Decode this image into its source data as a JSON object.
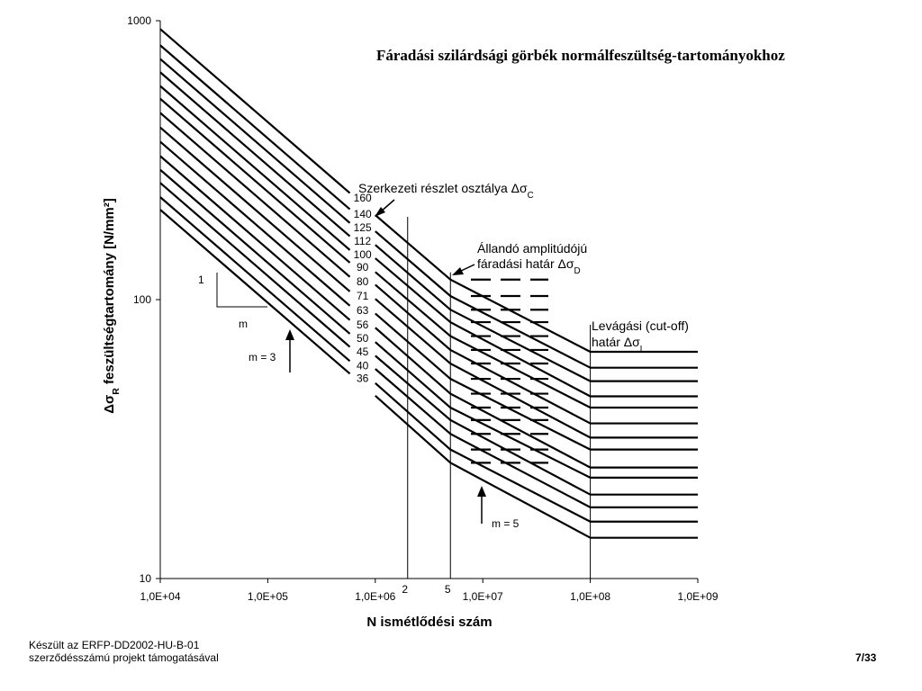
{
  "chart_data": {
    "type": "line",
    "title": "Fáradási szilárdsági görbék normálfeszültség-tartományokhoz",
    "xlabel": "N ismétlődési szám",
    "ylabel": "Δσ_R feszültségtartomány [N/mm²]",
    "xscale": "log",
    "yscale": "log",
    "xlim": [
      10000,
      1000000000
    ],
    "ylim": [
      10,
      1000
    ],
    "xticks": [
      "1,0E+04",
      "1,0E+05",
      "1,0E+06",
      "1,0E+07",
      "1,0E+08",
      "1,0E+09"
    ],
    "yticks": [
      "10",
      "100",
      "1000"
    ],
    "x_markers": [
      {
        "x": 2000000,
        "label": "2"
      },
      {
        "x": 5000000,
        "label": "5"
      },
      {
        "x": 100000000,
        "label": ""
      }
    ],
    "detail_categories": [
      160,
      140,
      125,
      112,
      100,
      90,
      80,
      71,
      63,
      56,
      50,
      45,
      40,
      36
    ],
    "segment_1": {
      "slope_m": 3,
      "x_range": [
        10000,
        5000000
      ]
    },
    "segment_2": {
      "slope_m": 5,
      "x_range": [
        5000000,
        100000000
      ]
    },
    "cutoff": {
      "x_range": [
        100000000,
        1000000000
      ]
    },
    "series": [
      {
        "name": "160",
        "points": [
          [
            10000,
            933
          ],
          [
            5000000,
            118
          ],
          [
            100000000,
            65
          ],
          [
            1000000000,
            65
          ]
        ]
      },
      {
        "name": "140",
        "points": [
          [
            10000,
            816
          ],
          [
            5000000,
            103
          ],
          [
            100000000,
            57
          ],
          [
            1000000000,
            57
          ]
        ]
      },
      {
        "name": "125",
        "points": [
          [
            10000,
            729
          ],
          [
            5000000,
            92
          ],
          [
            100000000,
            51
          ],
          [
            1000000000,
            51
          ]
        ]
      },
      {
        "name": "112",
        "points": [
          [
            10000,
            653
          ],
          [
            5000000,
            83
          ],
          [
            100000000,
            45
          ],
          [
            1000000000,
            45
          ]
        ]
      },
      {
        "name": "100",
        "points": [
          [
            10000,
            583
          ],
          [
            5000000,
            74
          ],
          [
            100000000,
            41
          ],
          [
            1000000000,
            41
          ]
        ]
      },
      {
        "name": "90",
        "points": [
          [
            10000,
            525
          ],
          [
            5000000,
            66
          ],
          [
            100000000,
            36
          ],
          [
            1000000000,
            36
          ]
        ]
      },
      {
        "name": "80",
        "points": [
          [
            10000,
            467
          ],
          [
            5000000,
            59
          ],
          [
            100000000,
            32
          ],
          [
            1000000000,
            32
          ]
        ]
      },
      {
        "name": "71",
        "points": [
          [
            10000,
            414
          ],
          [
            5000000,
            52
          ],
          [
            100000000,
            29
          ],
          [
            1000000000,
            29
          ]
        ]
      },
      {
        "name": "63",
        "points": [
          [
            10000,
            368
          ],
          [
            5000000,
            46
          ],
          [
            100000000,
            25
          ],
          [
            1000000000,
            25
          ]
        ]
      },
      {
        "name": "56",
        "points": [
          [
            10000,
            327
          ],
          [
            5000000,
            41
          ],
          [
            100000000,
            23
          ],
          [
            1000000000,
            23
          ]
        ]
      },
      {
        "name": "50",
        "points": [
          [
            10000,
            292
          ],
          [
            5000000,
            37
          ],
          [
            100000000,
            20
          ],
          [
            1000000000,
            20
          ]
        ]
      },
      {
        "name": "45",
        "points": [
          [
            10000,
            262
          ],
          [
            5000000,
            33
          ],
          [
            100000000,
            18
          ],
          [
            1000000000,
            18
          ]
        ]
      },
      {
        "name": "40",
        "points": [
          [
            10000,
            233
          ],
          [
            5000000,
            29
          ],
          [
            100000000,
            16
          ],
          [
            1000000000,
            16
          ]
        ]
      },
      {
        "name": "36",
        "points": [
          [
            10000,
            210
          ],
          [
            5000000,
            26
          ],
          [
            100000000,
            14
          ],
          [
            1000000000,
            14
          ]
        ]
      }
    ],
    "annotations": {
      "detail_class": "Szerkezeti részlet osztálya Δσ_C",
      "const_amp_1": "Állandó amplitúdójú",
      "const_amp_2": "fáradási határ Δσ_D",
      "cutoff_1": "Levágási (cut-off)",
      "cutoff_2": "határ Δσ_L",
      "slope_1": "m = 3",
      "slope_2": "m = 5",
      "triangle_rise": "1",
      "triangle_run": "m"
    }
  },
  "footer": {
    "line1": "Készült az ERFP-DD2002-HU-B-01",
    "line2": "szerződésszámú projekt támogatásával",
    "page": "7/33"
  }
}
